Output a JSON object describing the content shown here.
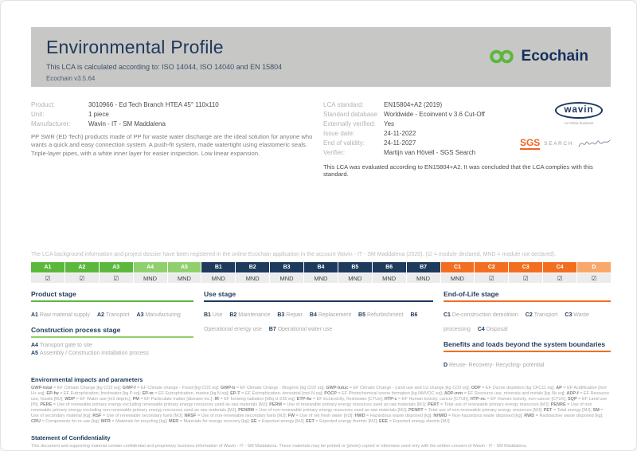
{
  "header": {
    "title": "Environmental Profile",
    "subtitle": "This LCA is calculated according to: ISO 14044, ISO 14040 and EN 15804",
    "version": "Ecochain v3.5.64",
    "logo_text": "Ecochain"
  },
  "product_info": {
    "rows": [
      {
        "label": "Product:",
        "value": "3010966 - Ed Tech Branch HTEA 45° 110x110"
      },
      {
        "label": "Unit:",
        "value": "1 piece"
      },
      {
        "label": "Manufacturer:",
        "value": "Wavin - IT - SM Maddalena"
      }
    ],
    "description": "PP SWR (ED Tech) products made of PP for waste water discharge are the ideal solution for anyone who wants a quick and easy connection system. A push-fit system, made watertight using elastomeric seals. Triple-layer pipes, with a white inner layer for easier inspection. Low linear expansion."
  },
  "lca_info": {
    "rows": [
      {
        "label": "LCA standard:",
        "value": "EN15804+A2 (2019)"
      },
      {
        "label": "Standard database:",
        "value": "Worldwide - Ecoinvent v 3.6 Cut-Off"
      },
      {
        "label": "Externally verified:",
        "value": "Yes"
      },
      {
        "label": "Issue date:",
        "value": "24-11-2022"
      },
      {
        "label": "End of validity:",
        "value": "24-11-2027"
      },
      {
        "label": "Verifier:",
        "value": "Martijn van Hövell - SGS Search"
      }
    ],
    "evaluation_note": "This LCA was evaluated according to EN15804+A2. It was concluded that the LCA complies with this standard."
  },
  "logos": {
    "wavin": {
      "name": "wavin",
      "tagline": "An Orbia business"
    },
    "sgs": {
      "name": "SGS",
      "search": "SEARCH"
    }
  },
  "registration_note": "The LCA background information and project dossier have been registered in the online Ecochain application in the account Wavin - IT - SM Maddalena (2020). (☑ = module declared, MND = module not declared).",
  "colors": {
    "product": "#5cb83c",
    "construction": "#90d06c",
    "use": "#1e3a5c",
    "eol": "#f26f21",
    "benefits": "#f8a86b",
    "ecochain_green": "#5cb83c",
    "sgs_orange": "#f26522",
    "navy": "#1e3a5c"
  },
  "module_table": {
    "declared_symbol": "☑",
    "not_declared_symbol": "MND",
    "columns": [
      {
        "id": "A1",
        "group": "product",
        "declared": true
      },
      {
        "id": "A2",
        "group": "product",
        "declared": true
      },
      {
        "id": "A3",
        "group": "product",
        "declared": true
      },
      {
        "id": "A4",
        "group": "construction",
        "declared": false
      },
      {
        "id": "A5",
        "group": "construction",
        "declared": false
      },
      {
        "id": "B1",
        "group": "use",
        "declared": false
      },
      {
        "id": "B2",
        "group": "use",
        "declared": false
      },
      {
        "id": "B3",
        "group": "use",
        "declared": false
      },
      {
        "id": "B4",
        "group": "use",
        "declared": false
      },
      {
        "id": "B5",
        "group": "use",
        "declared": false
      },
      {
        "id": "B6",
        "group": "use",
        "declared": false
      },
      {
        "id": "B7",
        "group": "use",
        "declared": false
      },
      {
        "id": "C1",
        "group": "eol",
        "declared": false
      },
      {
        "id": "C2",
        "group": "eol",
        "declared": true
      },
      {
        "id": "C3",
        "group": "eol",
        "declared": true
      },
      {
        "id": "C4",
        "group": "eol",
        "declared": true
      },
      {
        "id": "D",
        "group": "benefits",
        "declared": true
      }
    ]
  },
  "stage_groups": [
    {
      "sections": [
        {
          "title": "Product stage",
          "color": "#5cb83c",
          "layout": "inline",
          "items": [
            {
              "code": "A1",
              "label": "Raw material supply"
            },
            {
              "code": "A2",
              "label": "Transport"
            },
            {
              "code": "A3",
              "label": "Manufacturing"
            }
          ]
        },
        {
          "title": "Construction process stage",
          "color": "#90d06c",
          "layout": "block",
          "items": [
            {
              "code": "A4",
              "label": "Transport gate to site"
            },
            {
              "code": "A5",
              "label": "Assembly / Construction installation process"
            }
          ]
        }
      ]
    },
    {
      "sections": [
        {
          "title": "Use stage",
          "color": "#1e3a5c",
          "layout": "inline",
          "items": [
            {
              "code": "B1",
              "label": "Use"
            },
            {
              "code": "B2",
              "label": "Maintenance"
            },
            {
              "code": "B3",
              "label": "Repair"
            },
            {
              "code": "B4",
              "label": "Replacement"
            },
            {
              "code": "B5",
              "label": "Refurbishment"
            },
            {
              "code": "B6",
              "label": "Operational energy use"
            },
            {
              "code": "B7",
              "label": "Operational water use"
            }
          ]
        }
      ]
    },
    {
      "sections": [
        {
          "title": "End-of-Life stage",
          "color": "#f26f21",
          "layout": "inline",
          "items": [
            {
              "code": "C1",
              "label": "De-construction demolition"
            },
            {
              "code": "C2",
              "label": "Transport"
            },
            {
              "code": "C3",
              "label": "Waste processing"
            },
            {
              "code": "C4",
              "label": "Disposal"
            }
          ]
        },
        {
          "title": "Benefits and loads beyond the system boundaries",
          "color": "#f26f21",
          "layout": "inline",
          "items": [
            {
              "code": "D",
              "label": "Reuse- Recovery- Recycling- potential"
            }
          ]
        }
      ]
    }
  ],
  "impacts": {
    "title": "Environmental impacts and parameters",
    "legend": "GWP-total = EF Climate Change [kg CO2 eq]; GWP-f = EF Climate change - Fossil [kg CO2 eq]; GWP-b = EF Climate Change - Biogenic [kg CO2 eq]; GWP-luluc = EF Climate Change - Land use and LU change [kg CO2 eq]; ODP = EF Ozone depletion [kg CFC11 eq]; AP = EF Acidification [mol H+ eq]; EP-fw = EF Eutrophication, freshwater [kg P eq]; EP-m = EF Eutrophication, marine [kg N eq]; EP-T = EF Eutrophication, terrestrial [mol N eq]; POCP = EF Photochemical ozone formation [kg NMVOC eq]; ADP-mm = EF Resource use, minerals and metals [kg Sb eq]; ADP-f = EF Resource use, fossils [MJ]; WDP = EF Water use [m3 depriv.]; PM = EF Particulate matter [disease inc.]; IR = EF Ionising radiation [kBq U-235 eq]; ETP-fw = EF Ecotoxicity, freshwater [CTUe]; HTP-c = EF Human toxicity, cancer [CTUh]; HTP-nc = EF Human toxicity, non-cancer [CTUh]; SQP = EF Land use [Pt]; PERE = Use of renewable primary energy excluding renewable primary energy resources used as raw materials [MJ]; PERM = Use of renewable primary energy resources used as raw materials [MJ]; PERT = Total use of renewable primary energy resources [MJ]; PENRE = Use of non renewable primary energy excluding non-renewable primary energy resources used as raw materials [MJ]; PENRM = Use of non-renewable primary energy resources used as raw materials [MJ]; PENRT = Total use of non-renewable primary energy resources [MJ]; PET = Total energy [MJ]; SM = Use of secondary material [kg]; RSF = Use of renewable secondary fuels [MJ]; NRSF = Use of non-renewable secondary fuels [MJ]; FW = Use of net fresh water [m3]; HWD = Hazardous waste disposed [kg]; NHWD = Non-hazardous waste disposed [kg]; RWD = Radioactive waste disposed [kg]; CRU = Components for re-use [kg]; MFR = Materials for recycling [kg]; MER = Materials for energy recovery [kg]; EE = Exported energy [MJ]; EET = Exported energy thermic [MJ]; EEE = Exported energy electric [MJ]"
  },
  "confidentiality": {
    "title": "Statement of Confidentiality",
    "text": "This document and supporting material contain confidential and proprietary business information of Wavin - IT - SM Maddalena. These materials may be printed or (photo) copied or otherwise used only with the written consent of Wavin - IT - SM Maddalena."
  }
}
